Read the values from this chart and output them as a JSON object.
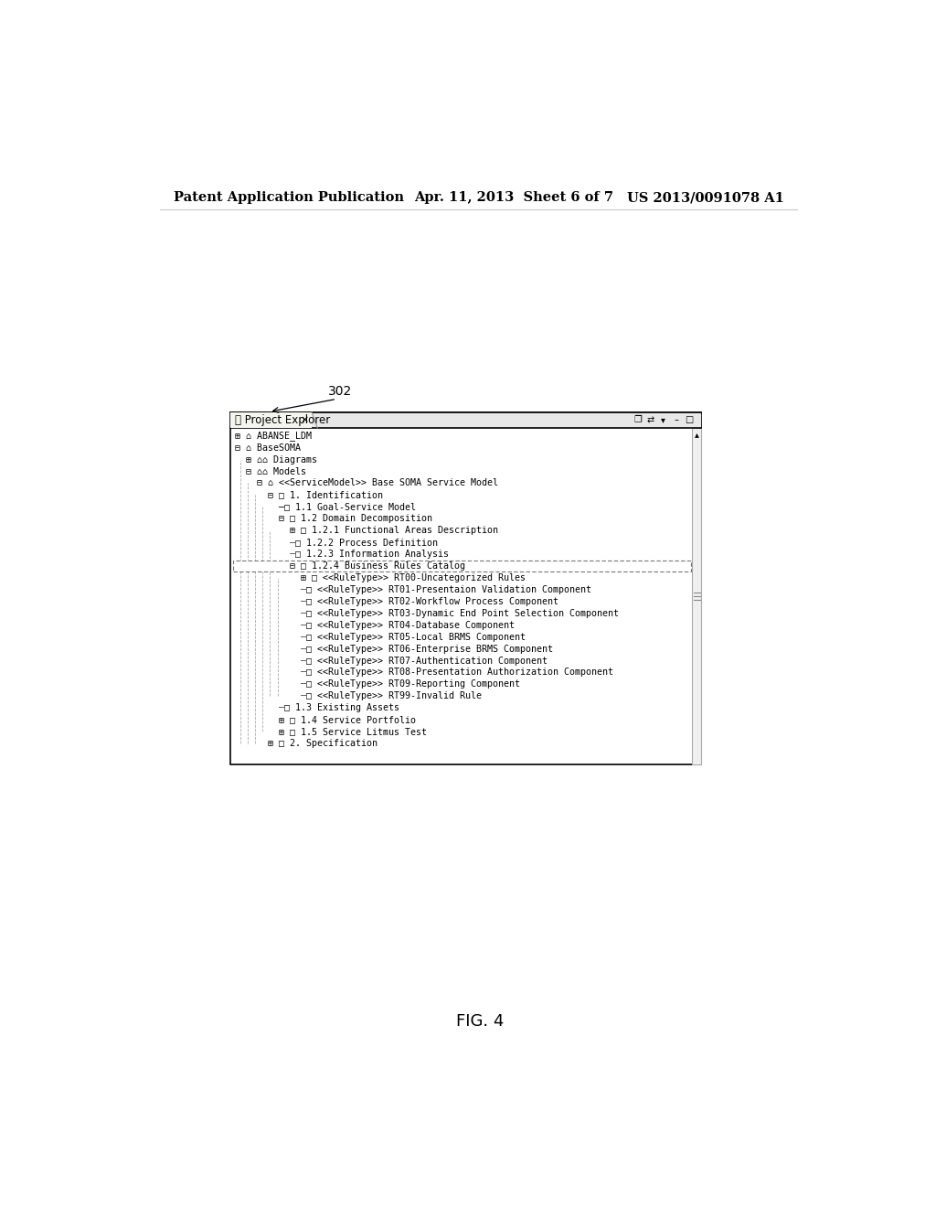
{
  "header_left": "Patent Application Publication",
  "header_center": "Apr. 11, 2013  Sheet 6 of 7",
  "header_right": "US 2013/0091078 A1",
  "footer_label": "FIG. 4",
  "callout_label": "302",
  "panel_title": "Project Explorer",
  "tree_rows": [
    {
      "text": "⊞ ⌂ ABANSE_LDM",
      "indent": 0,
      "connector": "solid"
    },
    {
      "text": "⊟ ⌂ BaseSOMA",
      "indent": 0,
      "connector": "solid"
    },
    {
      "text": "  ⊞ ⌂⌂ Diagrams",
      "indent": 1,
      "connector": "solid"
    },
    {
      "text": "  ⊟ ⌂⌂ Models",
      "indent": 1,
      "connector": "solid"
    },
    {
      "text": "    ⊟ ⌂ <<ServiceModel>> Base SOMA Service Model",
      "indent": 2,
      "connector": "solid"
    },
    {
      "text": "      ⊟ □ 1. Identification",
      "indent": 3,
      "connector": "solid"
    },
    {
      "text": "        ─□ 1.1 Goal-Service Model",
      "indent": 4,
      "connector": "solid"
    },
    {
      "text": "        ⊟ □ 1.2 Domain Decomposition",
      "indent": 4,
      "connector": "solid"
    },
    {
      "text": "          ⊞ □ 1.2.1 Functional Areas Description",
      "indent": 5,
      "connector": "solid"
    },
    {
      "text": "          ┄□ 1.2.2 Process Definition",
      "indent": 5,
      "connector": "dashed"
    },
    {
      "text": "          ┄□ 1.2.3 Information Analysis",
      "indent": 5,
      "connector": "dashed"
    },
    {
      "text": "          ⊟ □ 1.2.4 Business Rules Catalog",
      "indent": 5,
      "connector": "selected"
    },
    {
      "text": "            ⊞ □ <<RuleType>> RT00-Uncategorized Rules",
      "indent": 6,
      "connector": "solid"
    },
    {
      "text": "            ┄□ <<RuleType>> RT01-Presentaion Validation Component",
      "indent": 6,
      "connector": "dashed"
    },
    {
      "text": "            ┄□ <<RuleType>> RT02-Workflow Process Component",
      "indent": 6,
      "connector": "dashed"
    },
    {
      "text": "            ┄□ <<RuleType>> RT03-Dynamic End Point Selection Component",
      "indent": 6,
      "connector": "dashed"
    },
    {
      "text": "            ┄□ <<RuleType>> RT04-Database Component",
      "indent": 6,
      "connector": "dashed"
    },
    {
      "text": "            ┄□ <<RuleType>> RT05-Local BRMS Component",
      "indent": 6,
      "connector": "dashed"
    },
    {
      "text": "            ┄□ <<RuleType>> RT06-Enterprise BRMS Component",
      "indent": 6,
      "connector": "dashed"
    },
    {
      "text": "            ┄□ <<RuleType>> RT07-Authentication Component",
      "indent": 6,
      "connector": "dashed"
    },
    {
      "text": "            ┄□ <<RuleType>> RT08-Presentation Authorization Component",
      "indent": 6,
      "connector": "dashed"
    },
    {
      "text": "            ┄□ <<RuleType>> RT09-Reporting Component",
      "indent": 6,
      "connector": "dashed"
    },
    {
      "text": "            ┄□ <<RuleType>> RT99-Invalid Rule",
      "indent": 6,
      "connector": "dashed"
    },
    {
      "text": "        ┄□ 1.3 Existing Assets",
      "indent": 4,
      "connector": "dashed"
    },
    {
      "text": "        ⊞ □ 1.4 Service Portfolio",
      "indent": 4,
      "connector": "solid"
    },
    {
      "text": "        ⊞ □ 1.5 Service Litmus Test",
      "indent": 4,
      "connector": "solid"
    },
    {
      "text": "      ⊞ □ 2. Specification",
      "indent": 3,
      "connector": "solid"
    }
  ],
  "background_color": "#ffffff"
}
